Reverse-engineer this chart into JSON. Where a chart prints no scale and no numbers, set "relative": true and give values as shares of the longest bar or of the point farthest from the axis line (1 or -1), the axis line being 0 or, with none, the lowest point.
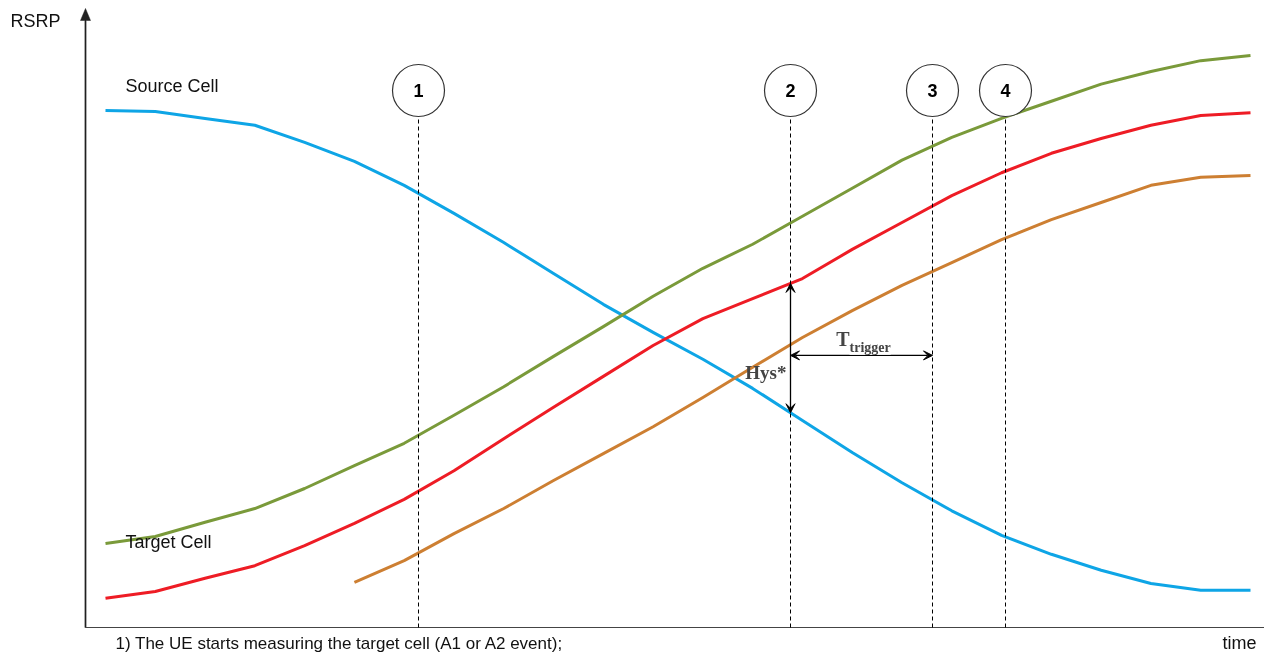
{
  "chart_data": {
    "type": "line",
    "relative": true,
    "xlabel": "time",
    "ylabel": "RSRP",
    "line_style": "solid",
    "categories": [
      null,
      null,
      null,
      null,
      null,
      null,
      null,
      null,
      null,
      null,
      null,
      null,
      null,
      null,
      null,
      null,
      null,
      null,
      null,
      null,
      null,
      null,
      null,
      null
    ],
    "series": [
      {
        "name": "Source Cell",
        "color": "#0ea5e6",
        "values": [
          0.904,
          0.902,
          0.89,
          0.878,
          0.848,
          0.815,
          0.773,
          0.724,
          0.673,
          0.619,
          0.565,
          0.516,
          0.469,
          0.418,
          0.362,
          0.306,
          0.253,
          0.204,
          0.161,
          0.128,
          0.1,
          0.077,
          0.065,
          0.065
        ]
      },
      {
        "color": "#ee1c25",
        "values": [
          0.051,
          0.063,
          0.086,
          0.108,
          0.143,
          0.182,
          0.224,
          0.274,
          0.33,
          0.385,
          0.439,
          0.493,
          0.54,
          0.575,
          0.61,
          0.661,
          0.708,
          0.755,
          0.795,
          0.829,
          0.855,
          0.878,
          0.895,
          0.9
        ]
      },
      {
        "name": "Target Cell",
        "color": "#7a9a3a",
        "values": [
          0.147,
          0.159,
          0.184,
          0.208,
          0.243,
          0.283,
          0.322,
          0.371,
          0.421,
          0.474,
          0.526,
          0.579,
          0.628,
          0.67,
          0.719,
          0.768,
          0.817,
          0.857,
          0.89,
          0.92,
          0.95,
          0.972,
          0.991,
          1.0
        ]
      },
      {
        "color": "#cd7f32",
        "values": [
          null,
          null,
          null,
          null,
          null,
          0.079,
          0.117,
          0.164,
          0.208,
          0.257,
          0.304,
          0.351,
          0.402,
          0.455,
          0.507,
          0.554,
          0.598,
          0.638,
          0.678,
          0.713,
          0.743,
          0.773,
          0.787,
          0.79
        ]
      }
    ],
    "annotations": [
      "1",
      "2",
      "3",
      "4",
      "Hys*",
      "T$_{trigger}$",
      "1) The UE starts measuring the target cell (A1 or A2 event);"
    ]
  }
}
